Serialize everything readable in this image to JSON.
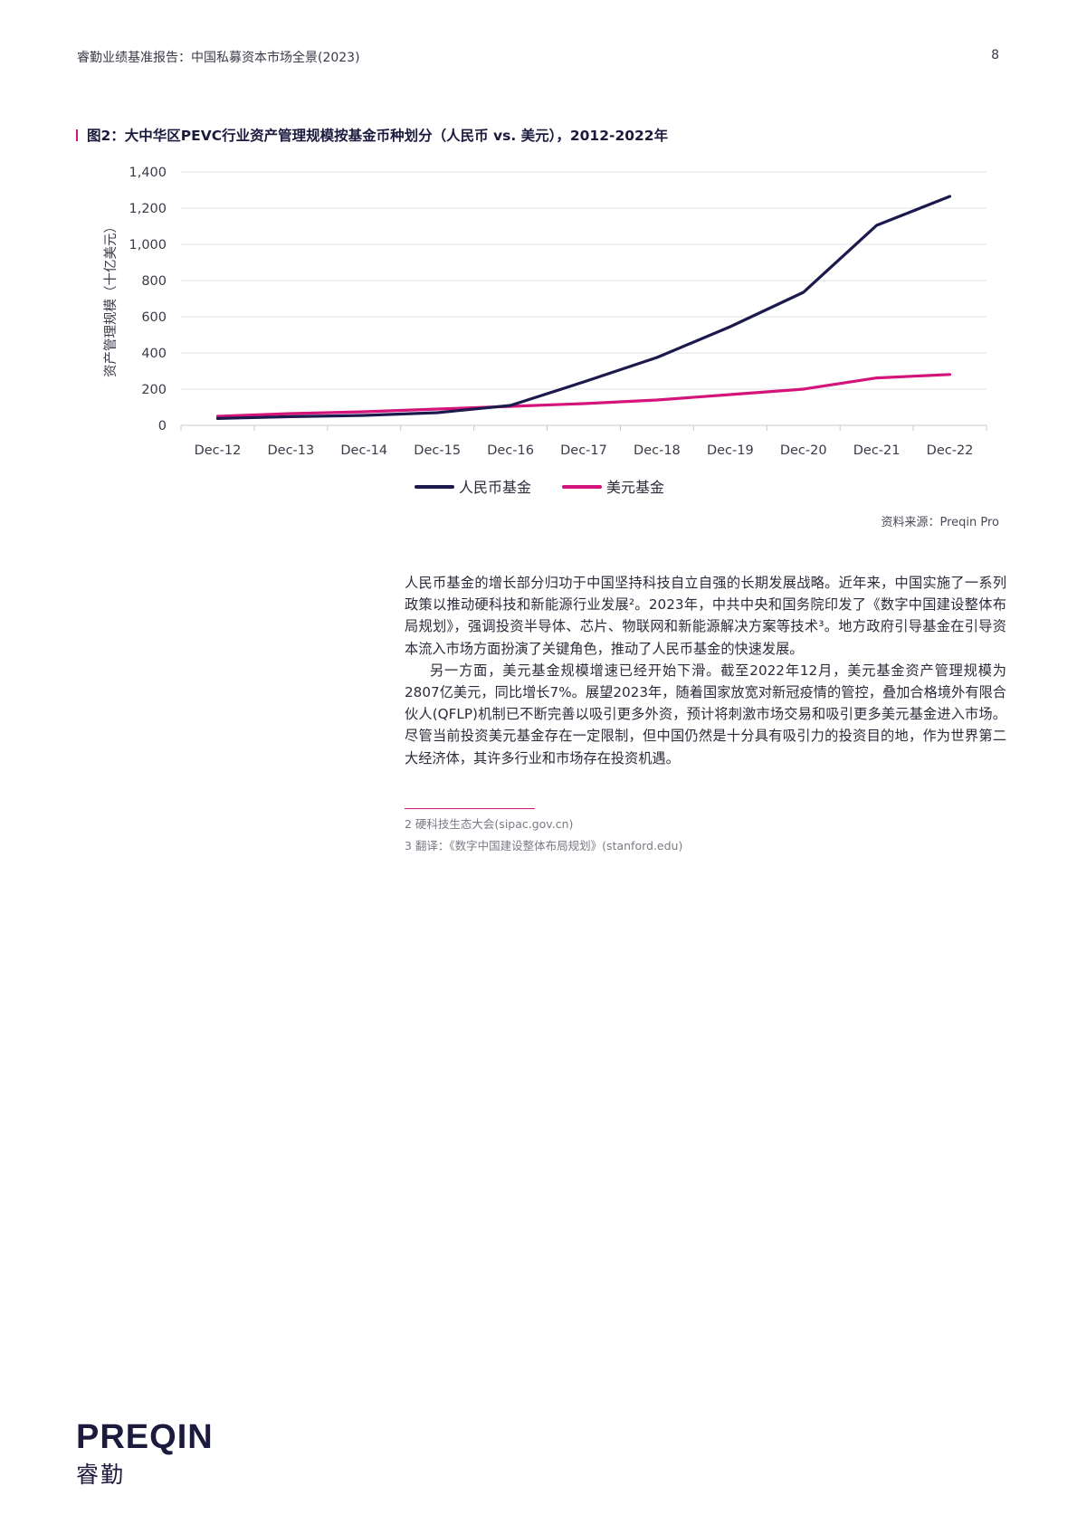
{
  "header": {
    "title": "睿勤业绩基准报告：中国私募资本市场全景(2023)",
    "page_number": "8"
  },
  "figure": {
    "title": "图2：大中华区PEVC行业资产管理规模按基金币种划分（人民币 vs. 美元），2012-2022年"
  },
  "chart_data": {
    "type": "line",
    "title": "图2：大中华区PEVC行业资产管理规模按基金币种划分（人民币 vs. 美元），2012-2022年",
    "ylabel": "资产管理规模（十亿美元）",
    "xlabel": "",
    "ylim": [
      0,
      1400
    ],
    "yticks": [
      "0",
      "200",
      "400",
      "600",
      "800",
      "1,000",
      "1,200",
      "1,400"
    ],
    "categories": [
      "Dec-12",
      "Dec-13",
      "Dec-14",
      "Dec-15",
      "Dec-16",
      "Dec-17",
      "Dec-18",
      "Dec-19",
      "Dec-20",
      "Dec-21",
      "Dec-22"
    ],
    "series": [
      {
        "name": "人民币基金",
        "color": "#1c1a4d",
        "values": [
          38,
          48,
          55,
          70,
          110,
          240,
          375,
          545,
          735,
          1105,
          1265
        ]
      },
      {
        "name": "美元基金",
        "color": "#d4147a",
        "values": [
          50,
          65,
          75,
          90,
          105,
          120,
          140,
          170,
          200,
          262,
          281
        ]
      }
    ],
    "grid": true,
    "legend": "bottom-center"
  },
  "source": "资料来源：Preqin Pro",
  "body": {
    "p1": "人民币基金的增长部分归功于中国坚持科技自立自强的长期发展战略。近年来，中国实施了一系列政策以推动硬科技和新能源行业发展²。2023年，中共中央和国务院印发了《数字中国建设整体布局规划》，强调投资半导体、芯片、物联网和新能源解决方案等技术³。地方政府引导基金在引导资本流入市场方面扮演了关键角色，推动了人民币基金的快速发展。",
    "p2": "另一方面，美元基金规模增速已经开始下滑。截至2022年12月，美元基金资产管理规模为2807亿美元，同比增长7%。展望2023年，随着国家放宽对新冠疫情的管控，叠加合格境外有限合伙人(QFLP)机制已不断完善以吸引更多外资，预计将刺激市场交易和吸引更多美元基金进入市场。尽管当前投资美元基金存在一定限制，但中国仍然是十分具有吸引力的投资目的地，作为世界第二大经济体，其许多行业和市场存在投资机遇。"
  },
  "footnotes": {
    "fn2": "2 硬科技生态大会(sipac.gov.cn)",
    "fn3": "3 翻译：《数字中国建设整体布局规划》(stanford.edu)"
  },
  "logo": {
    "wordmark": "PREQIN",
    "cn": "睿勤"
  }
}
